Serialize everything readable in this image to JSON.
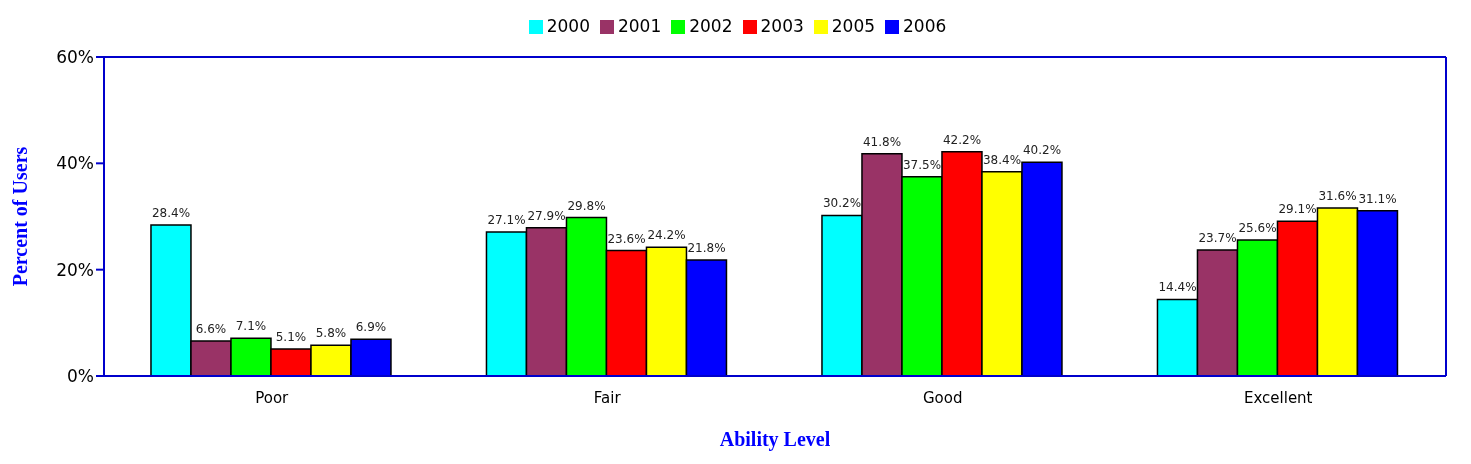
{
  "chart_data": {
    "type": "bar",
    "xlabel": "Ability Level",
    "ylabel": "Percent of Users",
    "categories": [
      "Poor",
      "Fair",
      "Good",
      "Excellent"
    ],
    "series": [
      {
        "name": "2000",
        "color": "#00ffff",
        "values": [
          28.4,
          27.1,
          30.2,
          14.4
        ],
        "value_labels": [
          "28.4%",
          "27.1%",
          "30.2%",
          "14.4%"
        ]
      },
      {
        "name": "2001",
        "color": "#993366",
        "values": [
          6.6,
          27.9,
          41.8,
          23.7
        ],
        "value_labels": [
          "6.6%",
          "27.9%",
          "41.8%",
          "23.7%"
        ]
      },
      {
        "name": "2002",
        "color": "#00ff00",
        "values": [
          7.1,
          29.8,
          37.5,
          25.6
        ],
        "value_labels": [
          "7.1%",
          "29.8%",
          "37.5%",
          "25.6%"
        ]
      },
      {
        "name": "2003",
        "color": "#ff0000",
        "values": [
          5.1,
          23.6,
          42.2,
          29.1
        ],
        "value_labels": [
          "5.1%",
          "23.6%",
          "42.2%",
          "29.1%"
        ]
      },
      {
        "name": "2005",
        "color": "#ffff00",
        "values": [
          5.8,
          24.2,
          38.4,
          31.6
        ],
        "value_labels": [
          "5.8%",
          "24.2%",
          "38.4%",
          "31.6%"
        ]
      },
      {
        "name": "2006",
        "color": "#0000ff",
        "values": [
          6.9,
          21.8,
          40.2,
          31.1
        ],
        "value_labels": [
          "6.9%",
          "21.8%",
          "40.2%",
          "31.1%"
        ]
      }
    ],
    "ylim": [
      0,
      60
    ],
    "yticks": [
      {
        "value": 0,
        "label": "0%"
      },
      {
        "value": 20,
        "label": "20%"
      },
      {
        "value": 40,
        "label": "40%"
      },
      {
        "value": 60,
        "label": "60%"
      }
    ],
    "grid": false,
    "legend": "top"
  }
}
